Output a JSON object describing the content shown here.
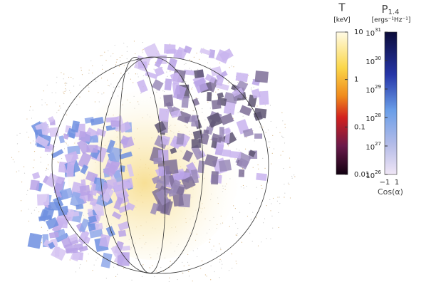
{
  "temperature_bar": {
    "title": "T",
    "unit": "[keV]",
    "ticks": [
      "10",
      "1",
      "0.1",
      "0.01"
    ]
  },
  "power_bar": {
    "title": "P",
    "title_sub": "1.4",
    "unit": "[ergs⁻¹Hz⁻¹]",
    "ticks": [
      {
        "base": "10",
        "exp": "31"
      },
      {
        "base": "10",
        "exp": "30"
      },
      {
        "base": "10",
        "exp": "29"
      },
      {
        "base": "10",
        "exp": "28"
      },
      {
        "base": "10",
        "exp": "27"
      },
      {
        "base": "10",
        "exp": "26"
      }
    ],
    "x_ticks": [
      "−1",
      "1"
    ],
    "x_label": "Cos(α)"
  }
}
